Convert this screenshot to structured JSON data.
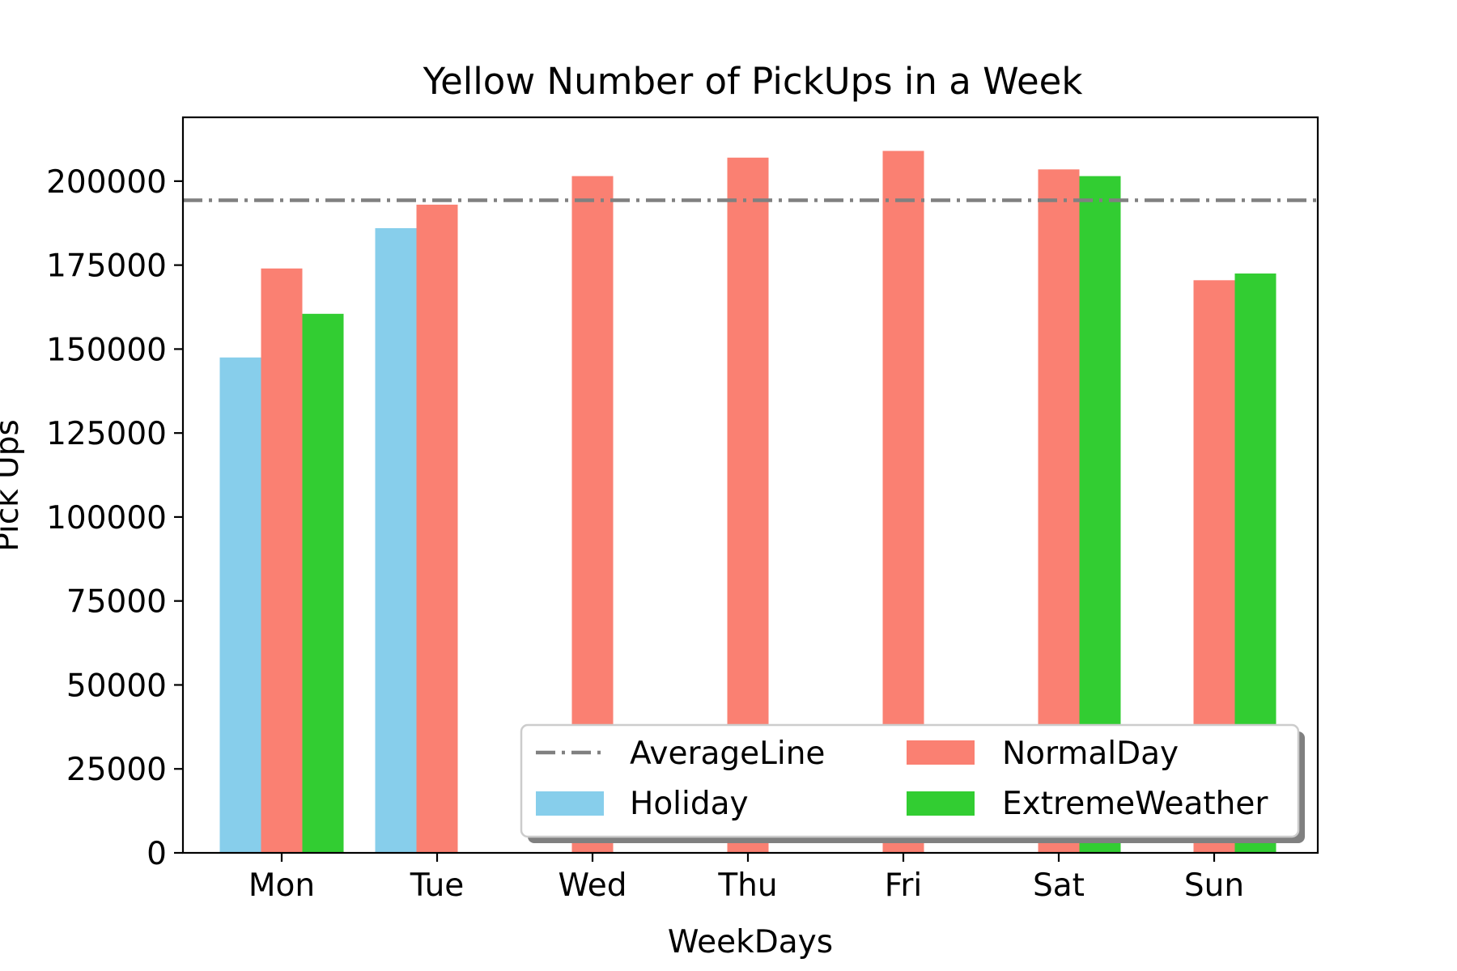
{
  "chart_data": {
    "type": "bar",
    "title": "Yellow Number of PickUps in a Week",
    "xlabel": "WeekDays",
    "ylabel": "Pick Ups",
    "ylim": [
      0,
      219000
    ],
    "yticks": [
      0,
      25000,
      50000,
      75000,
      100000,
      125000,
      150000,
      175000,
      200000
    ],
    "ytick_labels": [
      "0",
      "25000",
      "50000",
      "75000",
      "100000",
      "125000",
      "150000",
      "175000",
      "200000"
    ],
    "categories": [
      "Mon",
      "Tue",
      "Wed",
      "Thu",
      "Fri",
      "Sat",
      "Sun"
    ],
    "series": [
      {
        "name": "Holiday",
        "color": "#87ceeb",
        "values": [
          147500,
          186000,
          null,
          null,
          null,
          null,
          null
        ]
      },
      {
        "name": "NormalDay",
        "color": "#fa8072",
        "values": [
          174000,
          193000,
          201500,
          207000,
          209000,
          203500,
          170500
        ]
      },
      {
        "name": "ExtremeWeather",
        "color": "#32cd32",
        "values": [
          160500,
          null,
          null,
          null,
          null,
          201500,
          172500
        ]
      }
    ],
    "reference_line": {
      "name": "AverageLine",
      "value": 194300,
      "color": "#808080",
      "style": "dash-dot"
    },
    "legend": {
      "placement": "lower-right",
      "entries": [
        "AverageLine",
        "NormalDay",
        "Holiday",
        "ExtremeWeather"
      ]
    },
    "grid": false
  }
}
